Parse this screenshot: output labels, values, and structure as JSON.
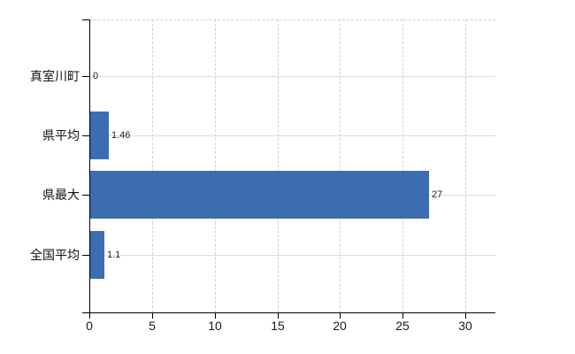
{
  "chart_data": {
    "type": "bar",
    "orientation": "horizontal",
    "title": "",
    "xlabel": "",
    "ylabel": "",
    "categories": [
      "真室川町",
      "県平均",
      "県最大",
      "全国平均"
    ],
    "values": [
      0,
      1.46,
      27,
      1.1
    ],
    "value_labels": [
      "0",
      "1.46",
      "27",
      "1.1"
    ],
    "xlim": [
      0,
      32.4
    ],
    "xticks": [
      0,
      5,
      10,
      15,
      20,
      25,
      30
    ],
    "xtick_labels": [
      "0",
      "5",
      "10",
      "15",
      "20",
      "25",
      "30"
    ],
    "grid": "on",
    "legend": "none",
    "bar_color": "#3c6db0",
    "grid_color": "#dcdcdc",
    "axis_color": "#000000",
    "background_color": "#ffffff"
  }
}
